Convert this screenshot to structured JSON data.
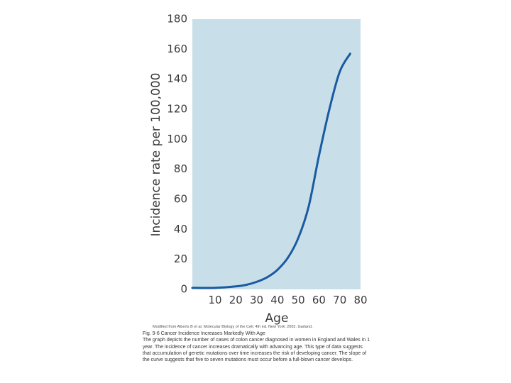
{
  "chart_data": {
    "type": "line",
    "title": "",
    "xlabel": "Age",
    "ylabel": "Incidence rate per 100,000",
    "xlim": [
      0,
      80
    ],
    "ylim": [
      0,
      180
    ],
    "x_ticks": [
      10,
      20,
      30,
      40,
      50,
      60,
      70,
      80
    ],
    "y_ticks": [
      0,
      20,
      40,
      60,
      80,
      100,
      120,
      140,
      160,
      180
    ],
    "grid": false,
    "legend": "none",
    "background_color": "#c8dfe9",
    "line_color": "#1a5aa0",
    "series": [
      {
        "x": [
          0,
          10,
          20,
          25,
          30,
          35,
          40,
          45,
          50,
          55,
          60,
          65,
          70,
          75
        ],
        "y": [
          1,
          1,
          2,
          3,
          5,
          8,
          13,
          21,
          34,
          55,
          89,
          120,
          145,
          157
        ]
      }
    ]
  },
  "credit": "Modified from Alberts B et al. Molecular Biology of the Cell. 4th ed. New York: 2002. Garland.",
  "caption": {
    "title": "Fig. 9-6 Cancer Incidence Increases Markedly With Age",
    "body": "The graph depicts the number of cases of colon cancer diagnosed in women in England and Wales in 1 year. The incidence of cancer increases dramatically with advancing age. This type of data suggests that accumulation of genetic mutations over time increases the risk of developing cancer. The slope of the curve suggests that five to seven mutations must occur before a full-blown cancer develops."
  }
}
